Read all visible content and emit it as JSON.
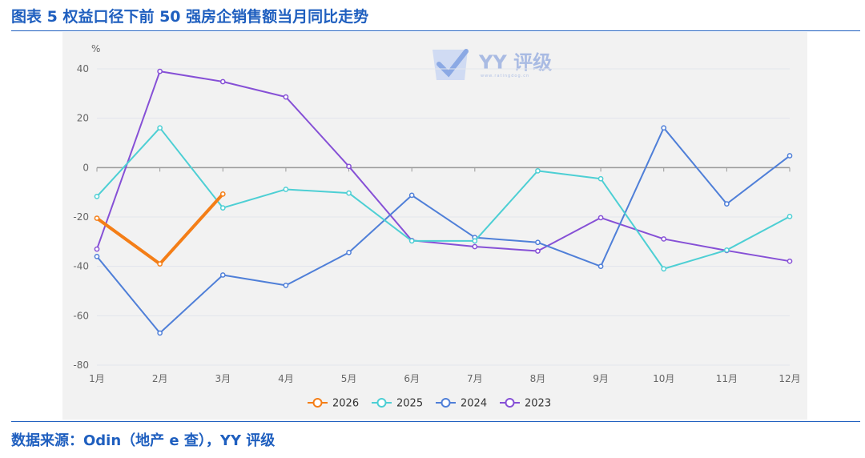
{
  "header": {
    "title": "图表 5 权益口径下前 50 强房企销售额当月同比走势"
  },
  "footer": {
    "source": "数据来源：Odin（地产 e 查），YY 评级"
  },
  "watermark": {
    "text": "YY 评级",
    "subtext": "www.ratingdog.cn",
    "logo_icon": "check-logo-icon",
    "color": "#6e8fd8"
  },
  "chart_data": {
    "type": "line",
    "title": "",
    "xlabel": "",
    "ylabel": "%",
    "categories": [
      "1月",
      "2月",
      "3月",
      "4月",
      "5月",
      "6月",
      "7月",
      "8月",
      "9月",
      "10月",
      "11月",
      "12月"
    ],
    "ylim": [
      -80,
      40
    ],
    "yticks": [
      -80,
      -60,
      -40,
      -20,
      0,
      20,
      40
    ],
    "grid": true,
    "legend_position": "bottom-center",
    "series": [
      {
        "name": "2026",
        "color": "#f47e17",
        "values": [
          -20.5,
          -39,
          -10.7,
          null,
          null,
          null,
          null,
          null,
          null,
          null,
          null,
          null
        ]
      },
      {
        "name": "2025",
        "color": "#4dcfd4",
        "values": [
          -11.7,
          16.1,
          -16.3,
          -8.8,
          -10.3,
          -29.7,
          -29.7,
          -1.3,
          -4.5,
          -41,
          -33.4,
          -19.8
        ]
      },
      {
        "name": "2024",
        "color": "#4f7fd8",
        "values": [
          -36,
          -67,
          -43.5,
          -47.7,
          -34.4,
          -11.2,
          -28.3,
          -30.3,
          -40,
          16.1,
          -14.7,
          4.8
        ]
      },
      {
        "name": "2023",
        "color": "#8650d6",
        "values": [
          -33,
          39,
          34.8,
          28.6,
          0.5,
          -29.5,
          -32,
          -33.8,
          -20.3,
          -28.9,
          -33.6,
          -37.9
        ]
      }
    ]
  }
}
